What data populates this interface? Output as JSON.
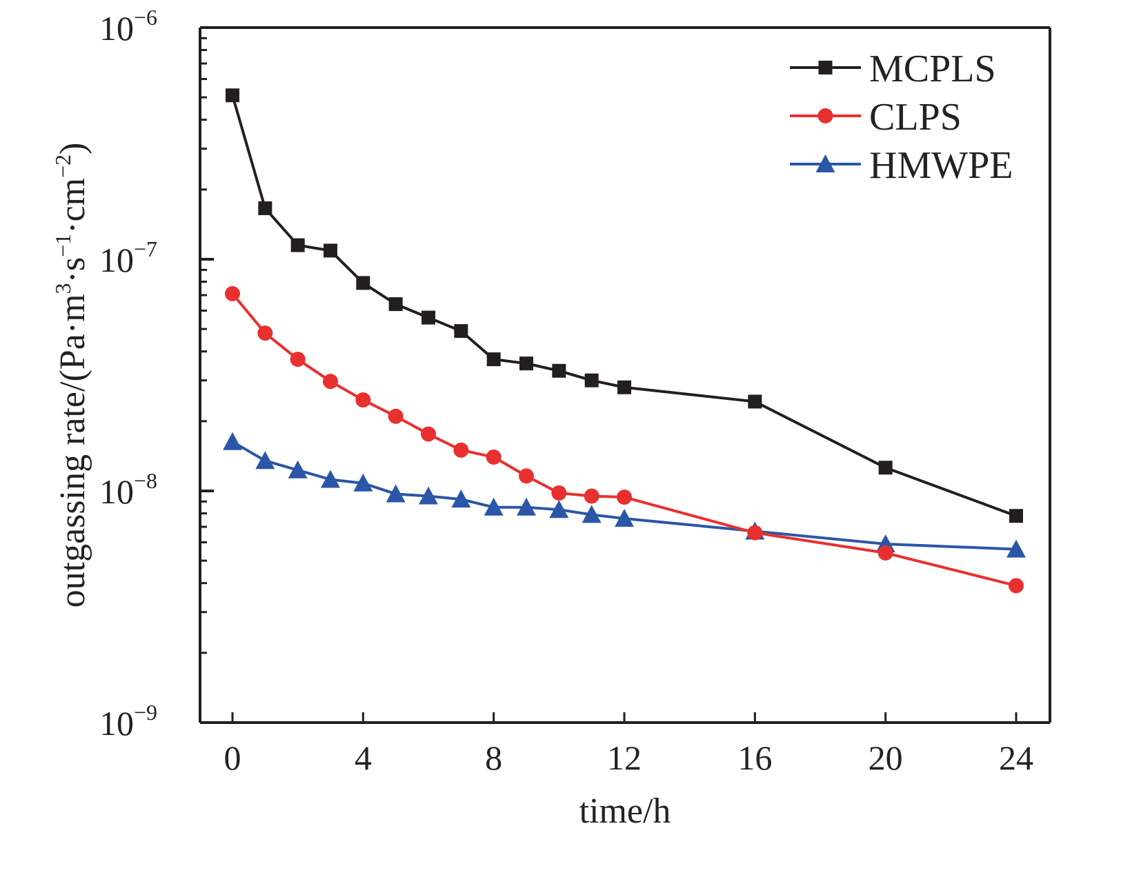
{
  "chart_data": {
    "type": "line",
    "title": "",
    "xlabel": "time/h",
    "ylabel_main": "outgassing rate/(Pa·m",
    "ylabel_parts": [
      "outgassing rate/(Pa·m",
      "3",
      "·s",
      "−1",
      "·cm",
      "−2",
      ")"
    ],
    "yscale": "log",
    "xlim": [
      -1,
      25
    ],
    "ylim": [
      1e-09,
      1e-06
    ],
    "xticks": [
      0,
      4,
      8,
      12,
      16,
      20,
      24
    ],
    "xtick_labels": [
      "0",
      "4",
      "8",
      "12",
      "16",
      "20",
      "24"
    ],
    "yticks": [
      1e-09,
      1e-08,
      1e-07,
      1e-06
    ],
    "ytick_labels": [
      {
        "base": "10",
        "exp": "−9"
      },
      {
        "base": "10",
        "exp": "−8"
      },
      {
        "base": "10",
        "exp": "−7"
      },
      {
        "base": "10",
        "exp": "−6"
      }
    ],
    "grid": false,
    "legend_position": "top-right",
    "x": [
      0,
      1,
      2,
      3,
      4,
      5,
      6,
      7,
      8,
      9,
      10,
      11,
      12,
      16,
      20,
      24
    ],
    "series": [
      {
        "name": "MCPLS",
        "color": "#231f20",
        "marker": "square",
        "values": [
          5.1e-07,
          1.66e-07,
          1.15e-07,
          1.09e-07,
          7.9e-08,
          6.4e-08,
          5.6e-08,
          4.9e-08,
          3.7e-08,
          3.55e-08,
          3.3e-08,
          3e-08,
          2.8e-08,
          2.43e-08,
          1.26e-08,
          7.8e-09
        ]
      },
      {
        "name": "CLPS",
        "color": "#e8302f",
        "marker": "circle",
        "values": [
          7.1e-08,
          4.8e-08,
          3.7e-08,
          2.97e-08,
          2.47e-08,
          2.1e-08,
          1.76e-08,
          1.5e-08,
          1.4e-08,
          1.16e-08,
          9.8e-09,
          9.5e-09,
          9.4e-09,
          6.6e-09,
          5.4e-09,
          3.9e-09
        ]
      },
      {
        "name": "HMWPE",
        "color": "#2b56a8",
        "marker": "triangle",
        "values": [
          1.63e-08,
          1.35e-08,
          1.23e-08,
          1.12e-08,
          1.08e-08,
          9.7e-09,
          9.5e-09,
          9.2e-09,
          8.5e-09,
          8.5e-09,
          8.3e-09,
          7.9e-09,
          7.6e-09,
          6.7e-09,
          5.9e-09,
          5.6e-09
        ]
      }
    ]
  }
}
